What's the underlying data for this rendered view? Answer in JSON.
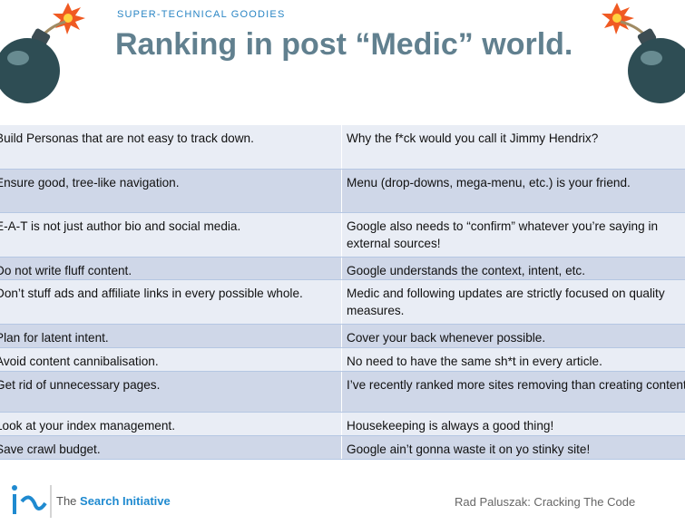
{
  "header": {
    "kicker": "SUPER-TECHNICAL GOODIES",
    "title": "Ranking in post “Medic” world."
  },
  "table": {
    "rows": [
      [
        "Build Personas that are not easy to track down.",
        "Why the f*ck would you call it Jimmy Hendrix?"
      ],
      [
        "Ensure good, tree-like navigation.",
        "Menu (drop-downs, mega-menu, etc.) is your friend."
      ],
      [
        "E-A-T is not just author bio and social media.",
        "Google also needs to “confirm” whatever you’re saying in external sources!"
      ],
      [
        "Do not write fluff content.",
        "Google understands the context, intent, etc."
      ],
      [
        "Don’t stuff ads and affiliate links in every possible whole.",
        "Medic and following updates are strictly focused on quality measures."
      ],
      [
        "Plan for latent intent.",
        "Cover your back whenever possible."
      ],
      [
        "Avoid content cannibalisation.",
        "No need to have the same sh*t in every article."
      ],
      [
        "Get rid of unnecessary pages.",
        "I’ve recently ranked more sites removing than creating content."
      ],
      [
        "Look at your index management.",
        "Housekeeping is always a good thing!"
      ],
      [
        "Save crawl budget.",
        "Google ain’t gonna waste it on yo stinky site!"
      ]
    ]
  },
  "footer": {
    "logo_prefix": "The",
    "logo_name": "Search Initiative",
    "credit": "Rad Paluszak: Cracking The Code"
  }
}
